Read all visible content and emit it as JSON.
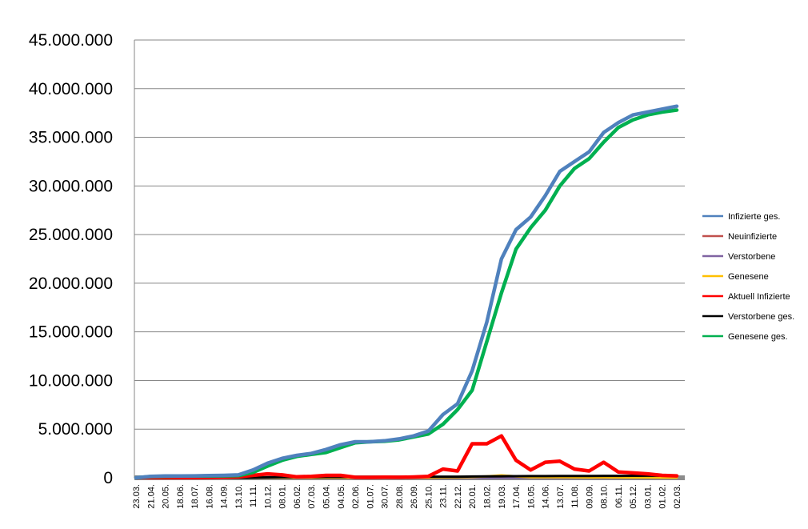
{
  "chart_data": {
    "type": "line",
    "ylim": [
      0,
      45000000
    ],
    "y_ticks": [
      0,
      5000000,
      10000000,
      15000000,
      20000000,
      25000000,
      30000000,
      35000000,
      40000000,
      45000000
    ],
    "y_tick_labels": [
      "0",
      "5.000.000",
      "10.000.000",
      "15.000.000",
      "20.000.000",
      "25.000.000",
      "30.000.000",
      "35.000.000",
      "40.000.000",
      "45.000.000"
    ],
    "x_tick_labels": [
      "23.03.",
      "21.04.",
      "20.05.",
      "18.06.",
      "18.07.",
      "16.08.",
      "14.09.",
      "13.10.",
      "11.11.",
      "10.12.",
      "08.01.",
      "06.02.",
      "07.03.",
      "05.04.",
      "04.05.",
      "02.06.",
      "01.07.",
      "30.07.",
      "28.08.",
      "26.09.",
      "25.10.",
      "23.11.",
      "22.12.",
      "20.01.",
      "18.02.",
      "19.03.",
      "17.04.",
      "16.05.",
      "14.06.",
      "13.07.",
      "11.08.",
      "09.09.",
      "08.10.",
      "06.11.",
      "05.12.",
      "03.01.",
      "01.02.",
      "02.03."
    ],
    "grid": true,
    "legend_position": "right",
    "series": [
      {
        "name": "Infizierte ges.",
        "color": "#4F81BD",
        "values": [
          0,
          150000,
          180000,
          190000,
          200000,
          220000,
          250000,
          300000,
          800000,
          1500000,
          2000000,
          2300000,
          2500000,
          2900000,
          3400000,
          3700000,
          3700000,
          3800000,
          4000000,
          4300000,
          4800000,
          6500000,
          7600000,
          11000000,
          16000000,
          22500000,
          25500000,
          26800000,
          29000000,
          31500000,
          32500000,
          33500000,
          35500000,
          36500000,
          37300000,
          37600000,
          37900000,
          38200000
        ]
      },
      {
        "name": "Neuinfizierte",
        "color": "#C0504D",
        "values": [
          0,
          5000,
          5000,
          5000,
          5000,
          5000,
          8000,
          15000,
          20000,
          25000,
          20000,
          15000,
          15000,
          20000,
          20000,
          10000,
          5000,
          10000,
          10000,
          15000,
          20000,
          40000,
          50000,
          80000,
          120000,
          150000,
          100000,
          50000,
          60000,
          70000,
          50000,
          40000,
          50000,
          40000,
          30000,
          30000,
          20000,
          20000
        ]
      },
      {
        "name": "Verstorbene",
        "color": "#8064A2",
        "values": [
          0,
          500,
          300,
          200,
          200,
          200,
          300,
          500,
          1000,
          2000,
          3000,
          2000,
          1500,
          1200,
          1000,
          800,
          500,
          400,
          400,
          500,
          800,
          1500,
          2000,
          2500,
          3000,
          3500,
          3000,
          2000,
          1500,
          1200,
          1000,
          900,
          1000,
          900,
          800,
          700,
          600,
          500
        ]
      },
      {
        "name": "Genesene",
        "color": "#FFC000",
        "values": [
          0,
          5000,
          5000,
          5000,
          5000,
          5000,
          8000,
          15000,
          20000,
          25000,
          20000,
          15000,
          15000,
          20000,
          20000,
          10000,
          5000,
          10000,
          10000,
          15000,
          20000,
          40000,
          50000,
          80000,
          150000,
          250000,
          150000,
          60000,
          60000,
          70000,
          50000,
          40000,
          50000,
          40000,
          30000,
          30000,
          20000,
          20000
        ]
      },
      {
        "name": "Aktuell Infizierte",
        "color": "#FF0000",
        "values": [
          0,
          30000,
          20000,
          20000,
          20000,
          40000,
          60000,
          100000,
          250000,
          400000,
          300000,
          100000,
          150000,
          250000,
          250000,
          50000,
          40000,
          60000,
          50000,
          80000,
          150000,
          900000,
          700000,
          3500000,
          3500000,
          4300000,
          1800000,
          800000,
          1600000,
          1700000,
          900000,
          700000,
          1600000,
          600000,
          500000,
          400000,
          250000,
          200000
        ]
      },
      {
        "name": "Verstorbene ges.",
        "color": "#000000",
        "values": [
          0,
          5000,
          8000,
          9000,
          9000,
          9000,
          10000,
          12000,
          20000,
          40000,
          60000,
          70000,
          75000,
          80000,
          85000,
          88000,
          90000,
          92000,
          93000,
          95000,
          97000,
          100000,
          110000,
          130000,
          140000,
          155000,
          165000,
          170000,
          175000,
          180000,
          185000,
          190000,
          195000,
          200000,
          205000,
          210000,
          212000,
          215000
        ]
      },
      {
        "name": "Genesene ges.",
        "color": "#00B050",
        "values": [
          0,
          120000,
          160000,
          170000,
          180000,
          190000,
          200000,
          220000,
          550000,
          1200000,
          1800000,
          2200000,
          2400000,
          2600000,
          3100000,
          3600000,
          3700000,
          3750000,
          3900000,
          4200000,
          4500000,
          5500000,
          7000000,
          9000000,
          14000000,
          19000000,
          23500000,
          25700000,
          27500000,
          30000000,
          31800000,
          32800000,
          34500000,
          36000000,
          36800000,
          37300000,
          37600000,
          37800000
        ]
      }
    ]
  }
}
